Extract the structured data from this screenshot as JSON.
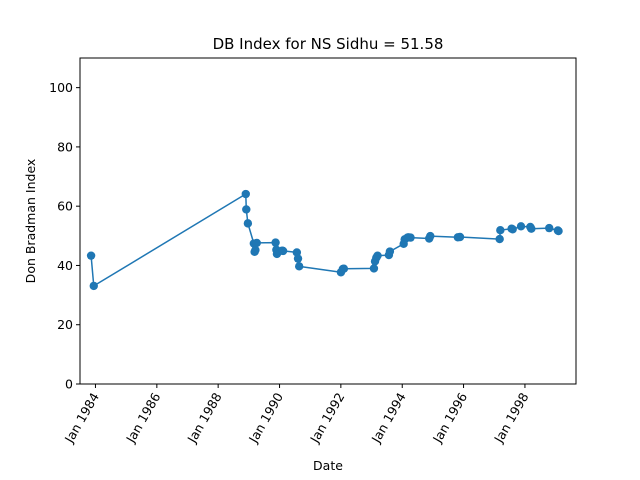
{
  "chart_data": {
    "type": "line",
    "title": "DB Index for NS Sidhu = 51.58",
    "xlabel": "Date",
    "ylabel": "Don Bradman Index",
    "xlim": [
      "1983-07-01",
      "1999-09-01"
    ],
    "ylim": [
      0,
      110
    ],
    "x_ticks": [
      "1984-01-01",
      "1986-01-01",
      "1988-01-01",
      "1990-01-01",
      "1992-01-01",
      "1994-01-01",
      "1996-01-01",
      "1998-01-01"
    ],
    "x_tick_labels": [
      "Jan 1984",
      "Jan 1986",
      "Jan 1988",
      "Jan 1990",
      "Jan 1992",
      "Jan 1994",
      "Jan 1996",
      "Jan 1998"
    ],
    "y_ticks": [
      0,
      20,
      40,
      60,
      80,
      100
    ],
    "y_tick_labels": [
      "0",
      "20",
      "40",
      "60",
      "80",
      "100"
    ],
    "grid": false,
    "legend": false,
    "color": "#1f77b4",
    "marker": "circle",
    "series": [
      {
        "x": [
          "1983-11-10",
          "1983-12-12",
          "1988-11-25",
          "1988-12-01",
          "1988-12-20",
          "1989-03-01",
          "1989-03-10",
          "1989-03-20",
          "1989-04-05",
          "1989-11-15",
          "1989-11-24",
          "1989-12-01",
          "1989-12-10",
          "1990-02-01",
          "1990-02-12",
          "1990-07-26",
          "1990-08-09",
          "1990-08-23",
          "1992-01-02",
          "1992-01-25",
          "1992-02-06",
          "1993-01-29",
          "1993-02-11",
          "1993-02-26",
          "1993-03-13",
          "1993-07-26",
          "1993-08-07",
          "1994-01-18",
          "1994-01-30",
          "1994-03-05",
          "1994-03-17",
          "1994-04-10",
          "1994-11-18",
          "1994-12-01",
          "1995-10-25",
          "1995-11-20",
          "1997-03-06",
          "1997-03-14",
          "1997-07-26",
          "1997-08-08",
          "1997-11-15",
          "1998-03-06",
          "1998-03-18",
          "1998-10-17",
          "1999-01-28",
          "1999-02-05"
        ],
        "y": [
          43.3,
          33.1,
          64.1,
          58.9,
          54.2,
          47.4,
          44.6,
          45.2,
          47.6,
          47.7,
          45.3,
          43.9,
          44.8,
          45.0,
          44.9,
          44.4,
          42.3,
          39.7,
          37.7,
          38.8,
          38.9,
          39.0,
          41.4,
          42.6,
          43.3,
          43.5,
          44.7,
          47.3,
          48.8,
          49.4,
          49.5,
          49.4,
          49.1,
          49.9,
          49.5,
          49.6,
          48.9,
          51.9,
          52.4,
          52.2,
          53.2,
          53.0,
          52.4,
          52.6,
          51.8,
          51.6
        ]
      }
    ]
  }
}
